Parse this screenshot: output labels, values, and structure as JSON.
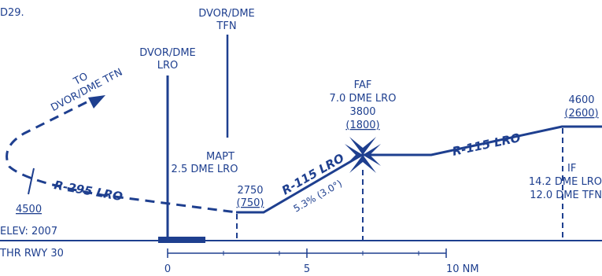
{
  "figure_id": "D29.",
  "colors": {
    "ink": "#1e3f8f",
    "background": "#ffffff"
  },
  "labels": {
    "dvor_tfn": [
      "DVOR/DME",
      "TFN"
    ],
    "dvor_lro": [
      "DVOR/DME",
      "LRO"
    ],
    "to_dvor": [
      "TO",
      "DVOR/DME TFN"
    ],
    "faf": [
      "FAF",
      "7.0 DME LRO",
      "3800",
      "(1800)"
    ],
    "mapt": [
      "MAPT",
      "2.5 DME LRO"
    ],
    "alt_2750": [
      "2750",
      "(750)"
    ],
    "alt_4600": [
      "4600",
      "(2600)"
    ],
    "if_fix": [
      "IF",
      "14.2 DME LRO",
      "12.0 DME TFN"
    ],
    "alt_4500": "4500",
    "elev": "ELEV: 2007",
    "thr": "THR RWY 30",
    "r295": "R-295 LRO",
    "r115a": "R-115 LRO",
    "r115b": "R-115 LRO",
    "gradient": "5.3% (3.0°)"
  },
  "scale": {
    "ticks": [
      "0",
      "5",
      "10 NM"
    ]
  }
}
